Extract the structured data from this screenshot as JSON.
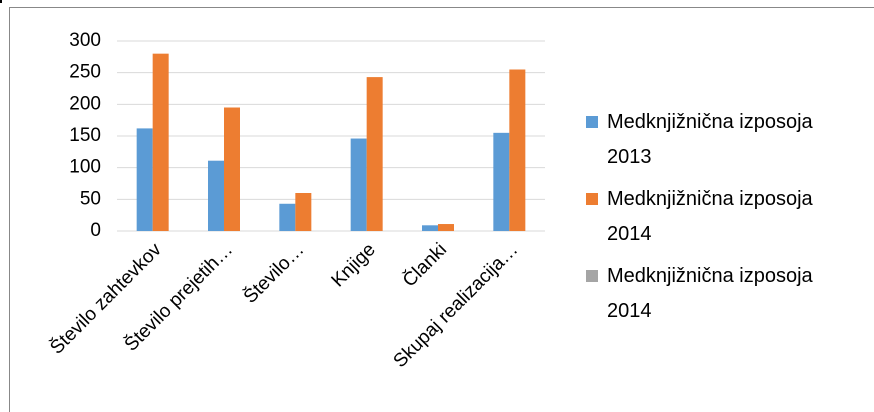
{
  "chart_data": {
    "type": "bar",
    "categories": [
      "Število zahtevkov",
      "Število prejetih…",
      "Število…",
      "Knjige",
      "Članki",
      "Skupaj realizacija…"
    ],
    "series": [
      {
        "name": "Medknjižnična izposoja 2013",
        "color": "#5b9bd5",
        "values": [
          162,
          111,
          43,
          146,
          9,
          155
        ]
      },
      {
        "name": "Medknjižnična izposoja 2014",
        "color": "#ed7d31",
        "values": [
          280,
          195,
          60,
          243,
          11,
          255
        ]
      },
      {
        "name": "Medknjižnična izposoja 2014",
        "color": "#a5a5a5",
        "values": [
          null,
          null,
          null,
          null,
          null,
          null
        ]
      }
    ],
    "ylim": [
      0,
      300
    ],
    "yticks": [
      0,
      50,
      100,
      150,
      200,
      250,
      300
    ],
    "grid": true,
    "legend": "right"
  }
}
